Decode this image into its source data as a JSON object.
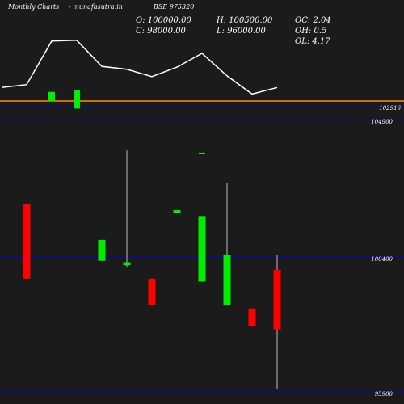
{
  "header": {
    "title": "Monthly Charts",
    "site": "- munafasutra.in",
    "symbol": "BSE 975320"
  },
  "ohlc": {
    "open": "O: 100000.00",
    "high": "H: 100500.00",
    "close": "C: 98000.00",
    "low": "L: 96000.00",
    "oc": "OC: 2.04",
    "oh": "OH: 0.5",
    "ol": "OL: 4.17"
  },
  "colors": {
    "background": "#1b1b1b",
    "up": "#00ee00",
    "down": "#ff0000",
    "wick": "#bbbbbb",
    "gridline": "#0000cc",
    "indicator_line": "#ff8c00",
    "indicator": "#ffffff"
  },
  "chart_data": {
    "type": "candlestick",
    "price_labels": [
      "104900",
      "100400",
      "95900"
    ],
    "indicator_label": "102916",
    "candles": [
      {
        "dir": "down",
        "open": 102200,
        "close": 99700,
        "high": 102200,
        "low": 99700
      },
      {
        "dir": "up",
        "open": 100300,
        "close": 101000,
        "high": 101000,
        "low": 100300
      },
      {
        "dir": "up",
        "open": 100150,
        "close": 100250,
        "high": 104000,
        "low": 100100
      },
      {
        "dir": "down",
        "open": 99700,
        "close": 98800,
        "high": 99700,
        "low": 98800
      },
      {
        "dir": "up",
        "open": 101900,
        "close": 102000,
        "high": 102000,
        "low": 101900
      },
      {
        "dir": "up",
        "open": 99600,
        "close": 101800,
        "high": 101800,
        "low": 99600
      },
      {
        "dir": "up",
        "open": 98800,
        "close": 100500,
        "high": 102900,
        "low": 98800
      },
      {
        "dir": "down",
        "open": 98700,
        "close": 98100,
        "high": 98700,
        "low": 98100
      },
      {
        "dir": "down",
        "open": 100000,
        "close": 98000,
        "high": 100500,
        "low": 96000
      }
    ],
    "candle_slots": [
      1,
      4,
      5,
      6,
      7,
      8,
      9,
      10,
      11
    ],
    "indicator_line": [
      {
        "slot": 0,
        "value": 0.33
      },
      {
        "slot": 1,
        "value": 0.37
      },
      {
        "slot": 2,
        "value": 0.97
      },
      {
        "slot": 3,
        "value": 0.98
      },
      {
        "slot": 4,
        "value": 0.62
      },
      {
        "slot": 5,
        "value": 0.58
      },
      {
        "slot": 6,
        "value": 0.48
      },
      {
        "slot": 7,
        "value": 0.61
      },
      {
        "slot": 8,
        "value": 0.8
      },
      {
        "slot": 9,
        "value": 0.49
      },
      {
        "slot": 10,
        "value": 0.24
      },
      {
        "slot": 11,
        "value": 0.33
      }
    ],
    "indicator_bars": [
      {
        "slot": 2,
        "dir": "up",
        "top": 0.27,
        "bottom": 0.14
      },
      {
        "slot": 3,
        "dir": "up",
        "top": 0.3,
        "bottom": 0.04
      }
    ],
    "ylim": [
      95900,
      104900
    ]
  }
}
